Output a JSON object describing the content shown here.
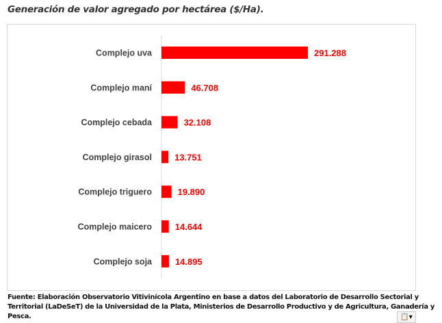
{
  "chart_data": {
    "type": "bar",
    "orientation": "horizontal",
    "title": "Generación de valor agregado por hectárea ($/Ha).",
    "categories": [
      "Complejo uva",
      "Complejo maní",
      "Complejo cebada",
      "Complejo girasol",
      "Complejo triguero",
      "Complejo maicero",
      "Complejo soja"
    ],
    "values": [
      291288,
      46708,
      32108,
      13751,
      19890,
      14644,
      14895
    ],
    "data_labels": [
      "291.288",
      "46.708",
      "32.108",
      "13.751",
      "19.890",
      "14.644",
      "14.895"
    ],
    "xlabel": "",
    "ylabel": "",
    "grid": false,
    "color": "#ff0000",
    "label_color": "#ff0000"
  },
  "source": "Fuente: Elaboración Observatorio Vitivinícola Argentino en base a datos del Laboratorio de Desarrollo Sectorial y Territorial (LaDeSeT) de la Universidad de la Plata, Ministerios de Desarrollo Productivo y de Agricultura, Ganadería y Pesca.",
  "paste_options_icon": "clipboard-icon"
}
